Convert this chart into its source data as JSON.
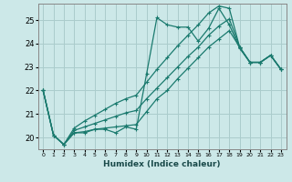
{
  "xlabel": "Humidex (Indice chaleur)",
  "bg_color": "#cce8e8",
  "grid_color": "#aacccc",
  "line_color": "#1a7a6e",
  "xlim": [
    -0.5,
    23.5
  ],
  "ylim": [
    19.5,
    25.7
  ],
  "yticks": [
    20,
    21,
    22,
    23,
    24,
    25
  ],
  "xticks": [
    0,
    1,
    2,
    3,
    4,
    5,
    6,
    7,
    8,
    9,
    10,
    11,
    12,
    13,
    14,
    15,
    16,
    17,
    18,
    19,
    20,
    21,
    22,
    23
  ],
  "lines": [
    [
      22.0,
      20.1,
      19.7,
      20.2,
      20.2,
      20.35,
      20.35,
      20.2,
      20.45,
      20.35,
      22.7,
      25.1,
      24.8,
      24.7,
      24.7,
      24.1,
      24.65,
      25.5,
      24.8,
      23.8,
      23.2,
      23.2,
      23.5,
      22.9
    ],
    [
      22.0,
      20.1,
      19.7,
      20.2,
      20.25,
      20.35,
      20.4,
      20.45,
      20.5,
      20.55,
      21.1,
      21.65,
      22.0,
      22.5,
      22.95,
      23.4,
      23.85,
      24.2,
      24.55,
      23.85,
      23.2,
      23.2,
      23.5,
      22.9
    ],
    [
      22.0,
      20.1,
      19.7,
      20.3,
      20.45,
      20.6,
      20.75,
      20.9,
      21.05,
      21.15,
      21.65,
      22.1,
      22.55,
      23.0,
      23.45,
      23.85,
      24.35,
      24.75,
      25.05,
      23.85,
      23.2,
      23.2,
      23.5,
      22.9
    ],
    [
      22.0,
      20.1,
      19.7,
      20.4,
      20.7,
      20.95,
      21.2,
      21.45,
      21.65,
      21.8,
      22.35,
      22.9,
      23.4,
      23.9,
      24.35,
      24.8,
      25.3,
      25.6,
      25.5,
      23.85,
      23.2,
      23.2,
      23.5,
      22.9
    ]
  ]
}
